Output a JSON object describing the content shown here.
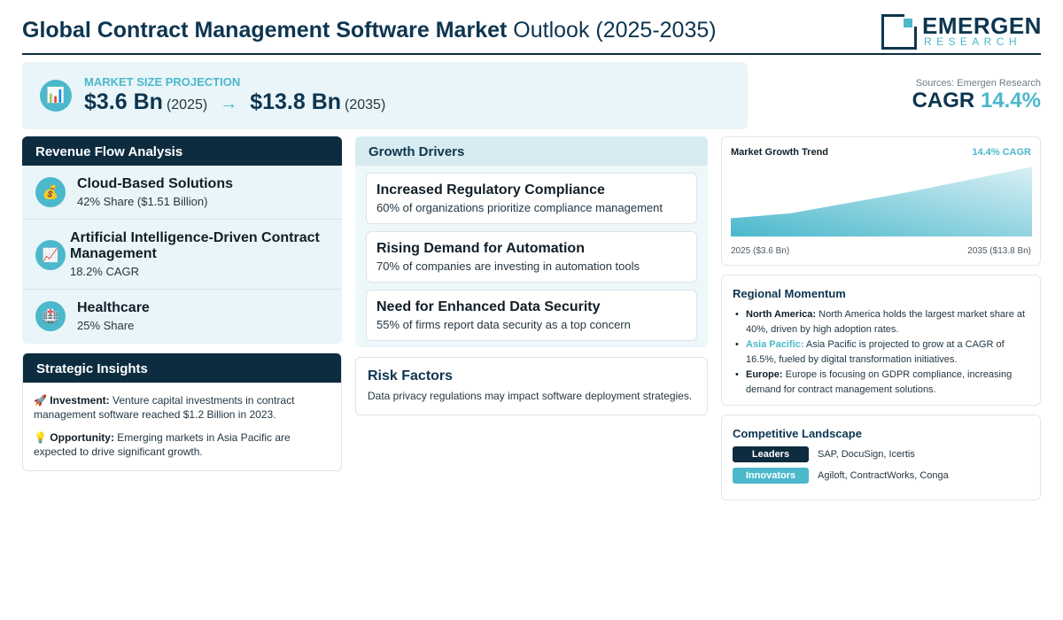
{
  "header": {
    "title_bold": "Global Contract Management Software Market",
    "title_rest": "Outlook (2025-2035)",
    "logo_name": "EMERGEN",
    "logo_sub": "RESEARCH"
  },
  "market_size": {
    "label": "MARKET SIZE PROJECTION",
    "icon": "bar-chart-icon",
    "value_start": "$3.6 Bn",
    "year_start": "(2025)",
    "arrow": "→",
    "value_end": "$13.8 Bn",
    "year_end": "(2035)"
  },
  "cagr": {
    "source": "Sources: Emergen Research",
    "label": "CAGR",
    "value": "14.4%"
  },
  "revenue_flow": {
    "heading": "Revenue Flow Analysis",
    "items": [
      {
        "icon": "money-bag-icon",
        "glyph": "💰",
        "title": "Cloud-Based Solutions",
        "sub": "42% Share ($1.51 Billion)"
      },
      {
        "icon": "trend-up-icon",
        "glyph": "📈",
        "title": "Artificial Intelligence-Driven Contract Management",
        "sub": "18.2% CAGR"
      },
      {
        "icon": "hospital-icon",
        "glyph": "🏥",
        "title": "Healthcare",
        "sub": "25% Share"
      }
    ]
  },
  "strategic": {
    "heading": "Strategic Insights",
    "items": [
      {
        "glyph": "🚀",
        "label": "Investment:",
        "text": "Venture capital investments in contract management software reached $1.2 Billion in 2023."
      },
      {
        "glyph": "💡",
        "label": "Opportunity:",
        "text": "Emerging markets in Asia Pacific are expected to drive significant growth."
      }
    ]
  },
  "growth_drivers": {
    "heading": "Growth Drivers",
    "items": [
      {
        "title": "Increased Regulatory Compliance",
        "sub": "60% of organizations prioritize compliance management"
      },
      {
        "title": "Rising Demand for Automation",
        "sub": "70% of companies are investing in automation tools"
      },
      {
        "title": "Need for Enhanced Data Security",
        "sub": "55% of firms report data security as a top concern"
      }
    ]
  },
  "risk": {
    "heading": "Risk Factors",
    "text": "Data privacy regulations may impact software deployment strategies."
  },
  "trend": {
    "title": "Market Growth Trend",
    "cagr": "14.4% CAGR",
    "label_start": "2025 ($3.6 Bn)",
    "label_end": "2035 ($13.8 Bn)",
    "fill_top": "#4bb8cc",
    "fill_bottom": "#d9f0f5"
  },
  "chart_data": {
    "type": "area",
    "x": [
      2025,
      2027,
      2031,
      2035
    ],
    "values": [
      3.6,
      4.6,
      8.9,
      13.8
    ],
    "title": "Market Growth Trend",
    "xlabel": "",
    "ylabel": "",
    "ylim": [
      0,
      14.4
    ],
    "grid": false,
    "legend": "none"
  },
  "regional": {
    "heading": "Regional Momentum",
    "items": [
      {
        "label": "North America:",
        "accent": false,
        "text": "North America holds the largest market share at 40%, driven by high adoption rates."
      },
      {
        "label": "Asia Pacific:",
        "accent": true,
        "text": "Asia Pacific is projected to grow at a CAGR of 16.5%, fueled by digital transformation initiatives."
      },
      {
        "label": "Europe:",
        "accent": false,
        "text": "Europe is focusing on GDPR compliance, increasing demand for contract management solutions."
      }
    ]
  },
  "competitive": {
    "heading": "Competitive Landscape",
    "leaders_label": "Leaders",
    "leaders": "SAP, DocuSign, Icertis",
    "innovators_label": "Innovators",
    "innovators": "Agiloft, ContractWorks, Conga"
  },
  "colors": {
    "navy": "#0d2c40",
    "accent": "#4bb8cc",
    "panel_bg": "#e9f5f8"
  }
}
